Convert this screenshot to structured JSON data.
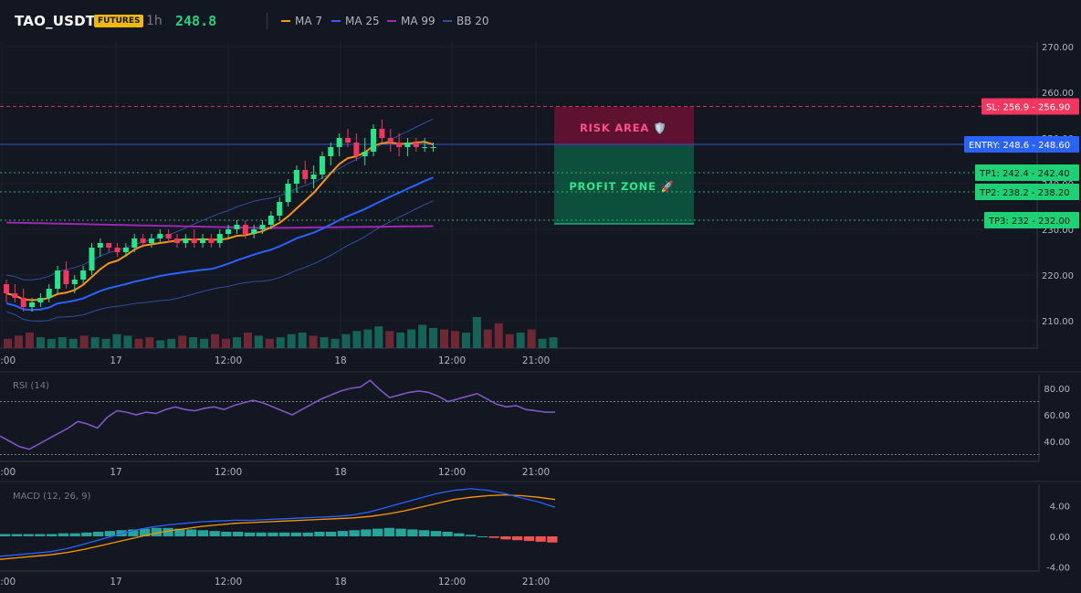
{
  "header": {
    "symbol": "TAO_USDT",
    "badge": "FUTURES",
    "timeframe": "1h",
    "price": "248.8",
    "indicators": [
      {
        "label": "MA 7",
        "color": "#f7931a"
      },
      {
        "label": "MA 25",
        "color": "#2962ff"
      },
      {
        "label": "MA 99",
        "color": "#9c27b0"
      },
      {
        "label": "BB 20",
        "color": "#1e3a8a"
      }
    ]
  },
  "price_axis": [
    "270.00",
    "260.00",
    "250.00",
    "240.00",
    "230.00",
    "220.00",
    "210.00"
  ],
  "time_axis": [
    "12:00",
    "17",
    "12:00",
    "18",
    "12:00",
    "21:00"
  ],
  "levels": {
    "sl": {
      "tag": "SL: 256.9",
      "value": "256.90",
      "price": 256.9
    },
    "entry": {
      "tag": "ENTRY: 248.6",
      "value": "248.60",
      "price": 248.6
    },
    "tp1": {
      "tag": "TP1: 242.4",
      "value": "242.40",
      "price": 242.4
    },
    "tp2": {
      "tag": "TP2: 238.2",
      "value": "238.20",
      "price": 238.2
    },
    "tp3": {
      "tag": "TP3: 232",
      "value": "232.00",
      "price": 232.0
    }
  },
  "zones": {
    "risk": "RISK AREA 🛡️",
    "profit": "PROFIT ZONE 🚀"
  },
  "rsi": {
    "title": "RSI (14)",
    "axis": [
      "80.00",
      "60.00",
      "40.00"
    ],
    "values": [
      44,
      40,
      36,
      34,
      38,
      42,
      46,
      50,
      55,
      53,
      50,
      58,
      63,
      62,
      60,
      62,
      61,
      64,
      66,
      64,
      63,
      65,
      66,
      64,
      67,
      69,
      71,
      69,
      66,
      63,
      60,
      64,
      68,
      72,
      75,
      78,
      80,
      81,
      86,
      79,
      73,
      75,
      77,
      78,
      77,
      74,
      70,
      72,
      74,
      76,
      72,
      68,
      66,
      67,
      64,
      63,
      62,
      62
    ]
  },
  "macd": {
    "title": "MACD (12, 26, 9)",
    "axis": [
      "4.00",
      "0.00",
      "-4.00"
    ],
    "macd_line": [
      -2.6,
      -2.4,
      -2.2,
      -2.0,
      -1.6,
      -1.0,
      -0.4,
      0.2,
      0.8,
      1.2,
      1.5,
      1.7,
      1.9,
      2.0,
      2.1,
      2.1,
      2.2,
      2.3,
      2.4,
      2.5,
      2.6,
      2.8,
      3.2,
      3.8,
      4.4,
      5.0,
      5.6,
      6.0,
      6.2,
      6.0,
      5.6,
      5.0,
      4.5,
      3.8
    ],
    "signal_line": [
      -3.0,
      -2.8,
      -2.6,
      -2.4,
      -2.1,
      -1.7,
      -1.2,
      -0.7,
      -0.2,
      0.3,
      0.7,
      1.0,
      1.3,
      1.5,
      1.7,
      1.8,
      1.9,
      2.0,
      2.1,
      2.2,
      2.3,
      2.4,
      2.6,
      2.9,
      3.3,
      3.8,
      4.3,
      4.8,
      5.1,
      5.3,
      5.4,
      5.3,
      5.1,
      4.8
    ],
    "histogram": [
      0.3,
      0.3,
      0.3,
      0.3,
      0.3,
      0.4,
      0.4,
      0.5,
      0.6,
      0.7,
      0.8,
      0.9,
      1.0,
      1.1,
      1.1,
      1.0,
      0.9,
      0.8,
      0.7,
      0.6,
      0.6,
      0.5,
      0.5,
      0.5,
      0.5,
      0.5,
      0.5,
      0.6,
      0.6,
      0.7,
      0.8,
      0.9,
      1.0,
      1.1,
      1.0,
      0.9,
      0.8,
      0.7,
      0.6,
      0.4,
      0.2,
      0.0,
      -0.2,
      -0.4,
      -0.5,
      -0.6,
      -0.7,
      -0.8
    ]
  },
  "candles": [
    [
      218,
      219,
      214,
      216
    ],
    [
      216,
      218,
      214,
      215
    ],
    [
      215,
      217,
      212,
      213
    ],
    [
      213,
      215,
      212,
      214
    ],
    [
      214,
      216,
      213,
      215
    ],
    [
      215,
      218,
      214,
      217
    ],
    [
      217,
      222,
      216,
      221
    ],
    [
      221,
      223,
      217,
      218
    ],
    [
      218,
      220,
      216,
      219
    ],
    [
      219,
      222,
      218,
      221
    ],
    [
      221,
      227,
      220,
      226
    ],
    [
      226,
      228,
      224,
      227
    ],
    [
      227,
      227,
      225,
      226
    ],
    [
      226,
      227,
      224,
      225
    ],
    [
      225,
      227,
      224,
      226
    ],
    [
      226,
      229,
      225,
      228
    ],
    [
      228,
      229,
      226,
      227
    ],
    [
      227,
      229,
      226,
      228
    ],
    [
      228,
      230,
      227,
      229
    ],
    [
      229,
      230,
      227,
      228
    ],
    [
      228,
      229,
      226,
      227
    ],
    [
      227,
      229,
      226,
      228
    ],
    [
      228,
      230,
      226,
      227
    ],
    [
      227,
      229,
      226,
      228
    ],
    [
      228,
      229,
      226,
      227
    ],
    [
      227,
      230,
      226,
      229
    ],
    [
      229,
      231,
      228,
      230
    ],
    [
      230,
      232,
      229,
      231
    ],
    [
      231,
      232,
      228,
      229
    ],
    [
      229,
      231,
      228,
      230
    ],
    [
      230,
      232,
      229,
      231
    ],
    [
      231,
      234,
      230,
      233
    ],
    [
      233,
      237,
      232,
      236
    ],
    [
      236,
      241,
      235,
      240
    ],
    [
      240,
      244,
      238,
      243
    ],
    [
      243,
      245,
      240,
      241
    ],
    [
      241,
      244,
      239,
      242
    ],
    [
      242,
      247,
      241,
      246
    ],
    [
      246,
      249,
      244,
      248
    ],
    [
      248,
      251,
      246,
      250
    ],
    [
      250,
      252,
      248,
      249
    ],
    [
      249,
      251,
      245,
      246
    ],
    [
      246,
      250,
      244,
      247
    ],
    [
      247,
      253,
      246,
      252
    ],
    [
      252,
      254,
      249,
      250
    ],
    [
      250,
      252,
      247,
      249
    ],
    [
      249,
      251,
      246,
      248
    ],
    [
      248,
      250,
      246,
      249
    ],
    [
      249,
      250,
      247,
      248
    ],
    [
      248,
      250,
      247,
      248
    ],
    [
      248,
      249,
      247,
      248
    ]
  ],
  "volumes": [
    0.3,
    0.4,
    0.5,
    0.35,
    0.3,
    0.35,
    0.3,
    0.4,
    0.35,
    0.3,
    0.45,
    0.4,
    0.3,
    0.35,
    0.25,
    0.3,
    0.4,
    0.35,
    0.3,
    0.45,
    0.3,
    0.35,
    0.5,
    0.4,
    0.3,
    0.35,
    0.45,
    0.5,
    0.4,
    0.35,
    0.3,
    0.45,
    0.55,
    0.6,
    0.7,
    0.55,
    0.5,
    0.6,
    0.75,
    0.65,
    0.6,
    0.55,
    0.5,
    1.0,
    0.6,
    0.8,
    0.45,
    0.5,
    0.6,
    0.3,
    0.35
  ]
}
